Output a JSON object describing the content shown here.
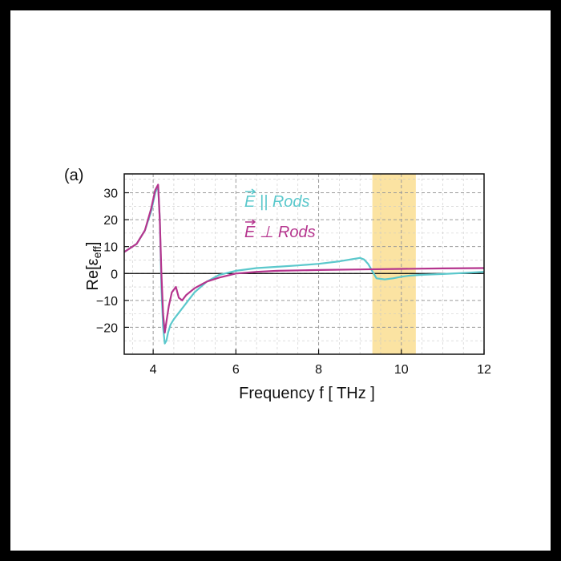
{
  "panel_label": "(a)",
  "colors": {
    "parallel": "#5bc8cc",
    "perpendicular": "#b5358e",
    "highlight": "#fbe3a2",
    "grid": "#9a9a9a",
    "zero_line": "#000000"
  },
  "chart_data": {
    "type": "line",
    "xlabel": "Frequency f [ THz ]",
    "ylabel_main": "Re[ε",
    "ylabel_sub": "eff",
    "ylabel_close": "]",
    "xlim": [
      3.3,
      12
    ],
    "ylim": [
      -30,
      37
    ],
    "xticks": [
      4,
      6,
      8,
      10,
      12
    ],
    "yticks": [
      30,
      20,
      10,
      0,
      -10,
      -20
    ],
    "ytick_labels": [
      "30",
      "20",
      "10",
      "0",
      "−10",
      "−20"
    ],
    "grid": true,
    "zero_line": 0,
    "highlight_band": [
      9.3,
      10.35
    ],
    "legend_position": "top-center",
    "series": [
      {
        "name": "E || Rods",
        "legend_arrow": "⃗",
        "legend_text": "E || Rods",
        "key": "parallel",
        "x": [
          3.3,
          3.6,
          3.8,
          3.95,
          4.05,
          4.12,
          4.16,
          4.2,
          4.24,
          4.28,
          4.32,
          4.36,
          4.42,
          4.5,
          4.6,
          4.8,
          5.0,
          5.3,
          5.6,
          6.0,
          6.5,
          7.0,
          7.5,
          8.0,
          8.5,
          8.8,
          9.0,
          9.1,
          9.2,
          9.3,
          9.4,
          9.6,
          9.8,
          10.0,
          10.2,
          10.5,
          11.0,
          11.5,
          12.0
        ],
        "y": [
          8,
          11,
          16,
          23,
          30,
          32.5,
          20,
          -5,
          -20,
          -26,
          -25,
          -22,
          -19,
          -17,
          -15,
          -11,
          -7,
          -3,
          -0.5,
          1,
          2,
          2.5,
          3,
          3.6,
          4.5,
          5.3,
          5.8,
          5.2,
          3.5,
          0.8,
          -1.8,
          -2.2,
          -1.8,
          -1.2,
          -0.8,
          -0.5,
          -0.2,
          0.2,
          0.6
        ]
      },
      {
        "name": "E ⊥ Rods",
        "legend_arrow": "⃗",
        "legend_text": "E ⊥ Rods",
        "key": "perpendicular",
        "x": [
          3.3,
          3.6,
          3.8,
          3.95,
          4.05,
          4.12,
          4.16,
          4.2,
          4.24,
          4.28,
          4.32,
          4.38,
          4.45,
          4.55,
          4.62,
          4.7,
          4.8,
          5.0,
          5.3,
          5.6,
          6.0,
          6.5,
          7.0,
          8.0,
          9.0,
          10.0,
          11.0,
          12.0
        ],
        "y": [
          8,
          11,
          16,
          24,
          31,
          33,
          20,
          0,
          -15,
          -22,
          -18,
          -12,
          -7,
          -5,
          -9,
          -10,
          -8,
          -5.5,
          -3,
          -1.5,
          0,
          0.6,
          1,
          1.3,
          1.5,
          1.7,
          1.9,
          2.0
        ]
      }
    ]
  }
}
